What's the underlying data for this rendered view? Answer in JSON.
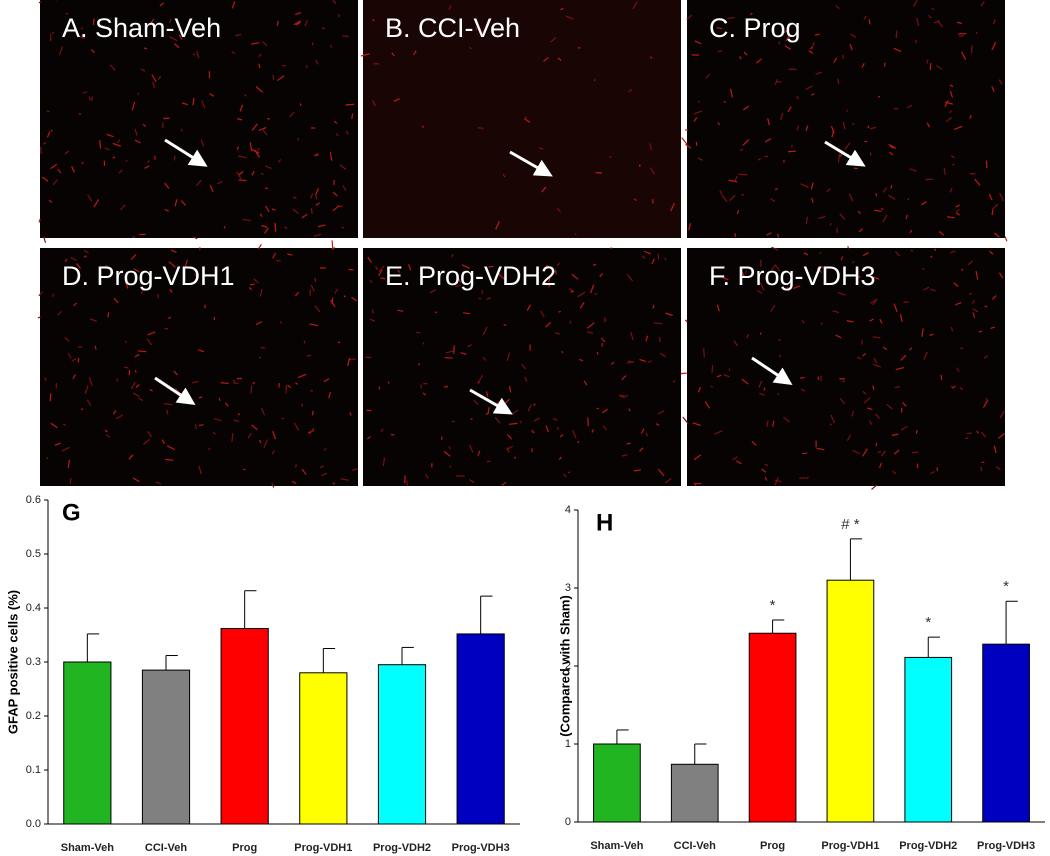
{
  "panels": [
    {
      "label": "A. Sham-Veh"
    },
    {
      "label": "B. CCI-Veh"
    },
    {
      "label": "C. Prog"
    },
    {
      "label": "D. Prog-VDH1"
    },
    {
      "label": "E. Prog-VDH2"
    },
    {
      "label": "F. Prog-VDH3"
    }
  ],
  "chart_data": [
    {
      "type": "bar",
      "panel_label": "G",
      "y_label": "GFAP positive cells (%)",
      "categories": [
        "Sham-Veh",
        "CCI-Veh",
        "Prog",
        "Prog-VDH1",
        "Prog-VDH2",
        "Prog-VDH3"
      ],
      "values": [
        0.3,
        0.285,
        0.362,
        0.28,
        0.295,
        0.352
      ],
      "errors": [
        0.052,
        0.027,
        0.07,
        0.045,
        0.032,
        0.07
      ],
      "colors": [
        "#22b522",
        "#808080",
        "#ff0000",
        "#ffff00",
        "#00ffff",
        "#0000c0"
      ],
      "ylim": [
        0,
        0.6
      ],
      "yticks": [
        {
          "value": 0,
          "label": "0.0"
        },
        0.1,
        0.2,
        0.3,
        0.4,
        0.5,
        0.6
      ]
    },
    {
      "type": "bar",
      "panel_label": "H",
      "y_label": "(Compared with Sham)",
      "categories": [
        "Sham-Veh",
        "CCI-Veh",
        "Prog",
        "Prog-VDH1",
        "Prog-VDH2",
        "Prog-VDH3"
      ],
      "values": [
        1.0,
        0.74,
        2.42,
        3.1,
        2.11,
        2.28
      ],
      "errors": [
        0.18,
        0.26,
        0.17,
        0.53,
        0.26,
        0.55
      ],
      "significance": [
        null,
        null,
        "*",
        "# *",
        "*",
        "*"
      ],
      "colors": [
        "#22b522",
        "#808080",
        "#ff0000",
        "#ffff00",
        "#00ffff",
        "#0000c0"
      ],
      "ylim": [
        0,
        4
      ],
      "yticks": [
        0,
        1,
        2,
        3,
        4
      ]
    }
  ]
}
